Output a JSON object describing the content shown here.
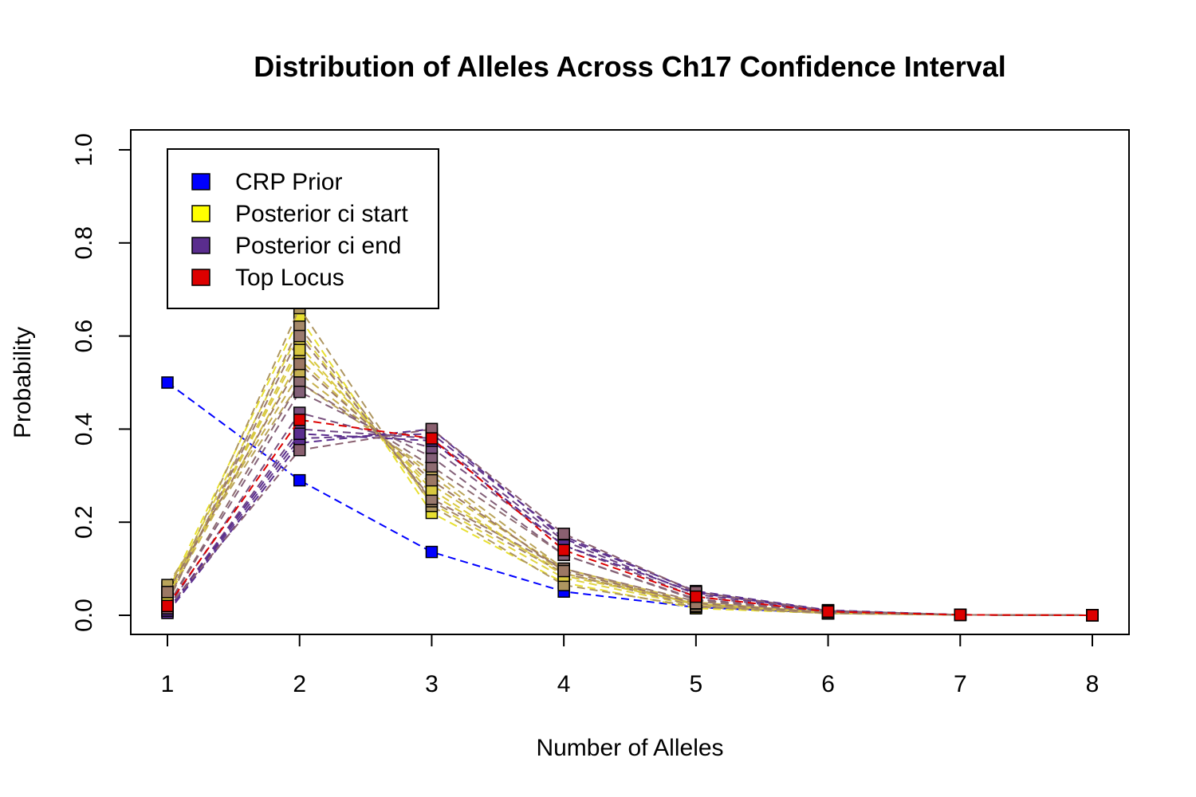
{
  "chart_data": {
    "type": "line",
    "title": "Distribution of Alleles Across Ch17 Confidence Interval",
    "xlabel": "Number of Alleles",
    "ylabel": "Probability",
    "x": [
      1,
      2,
      3,
      4,
      5,
      6,
      7,
      8
    ],
    "xlim": [
      1,
      8
    ],
    "ylim": [
      0,
      1
    ],
    "x_ticks": [
      "1",
      "2",
      "3",
      "4",
      "5",
      "6",
      "7",
      "8"
    ],
    "y_ticks": [
      "0.0",
      "0.2",
      "0.4",
      "0.6",
      "0.8",
      "1.0"
    ],
    "grid": false,
    "legend_position": "top-left",
    "legend": [
      {
        "label": "CRP Prior",
        "color": "#0000ff"
      },
      {
        "label": "Posterior ci start",
        "color": "#ffff00"
      },
      {
        "label": "Posterior ci end",
        "color": "#5a2d8e"
      },
      {
        "label": "Top Locus",
        "color": "#dd0000"
      }
    ],
    "series": [
      {
        "color": "#0000ff",
        "values": [
          0.5,
          0.29,
          0.136,
          0.051,
          0.017,
          0.005,
          0.001,
          0.0
        ]
      },
      {
        "color": "#e8e030",
        "values": [
          0.05,
          0.64,
          0.22,
          0.07,
          0.015,
          0.004,
          0.001,
          0.0
        ]
      },
      {
        "color": "#e0d440",
        "values": [
          0.045,
          0.61,
          0.24,
          0.08,
          0.02,
          0.004,
          0.001,
          0.0
        ]
      },
      {
        "color": "#d8c840",
        "values": [
          0.04,
          0.58,
          0.26,
          0.09,
          0.024,
          0.005,
          0.001,
          0.0
        ]
      },
      {
        "color": "#d0bc48",
        "values": [
          0.035,
          0.55,
          0.28,
          0.1,
          0.028,
          0.006,
          0.001,
          0.0
        ]
      },
      {
        "color": "#c6b050",
        "values": [
          0.06,
          0.52,
          0.3,
          0.09,
          0.025,
          0.005,
          0.001,
          0.0
        ]
      },
      {
        "color": "#baa45a",
        "values": [
          0.065,
          0.5,
          0.31,
          0.1,
          0.022,
          0.004,
          0.001,
          0.0
        ]
      },
      {
        "color": "#ae9660",
        "values": [
          0.03,
          0.66,
          0.235,
          0.065,
          0.018,
          0.004,
          0.001,
          0.0
        ]
      },
      {
        "color": "#a58868",
        "values": [
          0.025,
          0.62,
          0.245,
          0.09,
          0.02,
          0.005,
          0.001,
          0.0
        ]
      },
      {
        "color": "#9a7a6e",
        "values": [
          0.03,
          0.6,
          0.25,
          0.1,
          0.03,
          0.006,
          0.001,
          0.0
        ]
      },
      {
        "color": "#8e6c72",
        "values": [
          0.02,
          0.5,
          0.32,
          0.13,
          0.033,
          0.007,
          0.001,
          0.0
        ]
      },
      {
        "color": "#836078",
        "values": [
          0.02,
          0.48,
          0.34,
          0.13,
          0.035,
          0.008,
          0.001,
          0.0
        ]
      },
      {
        "color": "#78507e",
        "values": [
          0.015,
          0.435,
          0.36,
          0.15,
          0.04,
          0.008,
          0.001,
          0.0
        ]
      },
      {
        "color": "#6e4484",
        "values": [
          0.01,
          0.4,
          0.38,
          0.16,
          0.045,
          0.009,
          0.001,
          0.0
        ]
      },
      {
        "color": "#64388a",
        "values": [
          0.008,
          0.38,
          0.39,
          0.17,
          0.05,
          0.01,
          0.001,
          0.0
        ]
      },
      {
        "color": "#5a2d8e",
        "values": [
          0.005,
          0.37,
          0.4,
          0.165,
          0.052,
          0.011,
          0.001,
          0.0
        ]
      },
      {
        "color": "#5a2d8e",
        "values": [
          0.01,
          0.39,
          0.375,
          0.15,
          0.048,
          0.01,
          0.001,
          0.0
        ]
      },
      {
        "color": "#8a6070",
        "values": [
          0.015,
          0.355,
          0.4,
          0.175,
          0.05,
          0.01,
          0.001,
          0.0
        ]
      },
      {
        "color": "#d8c840",
        "values": [
          0.04,
          0.57,
          0.27,
          0.085,
          0.025,
          0.005,
          0.001,
          0.0
        ]
      },
      {
        "color": "#9c7864",
        "values": [
          0.05,
          0.54,
          0.29,
          0.095,
          0.026,
          0.005,
          0.001,
          0.0
        ]
      },
      {
        "color": "#dd0000",
        "values": [
          0.02,
          0.42,
          0.38,
          0.14,
          0.04,
          0.008,
          0.001,
          0.0
        ]
      }
    ]
  }
}
